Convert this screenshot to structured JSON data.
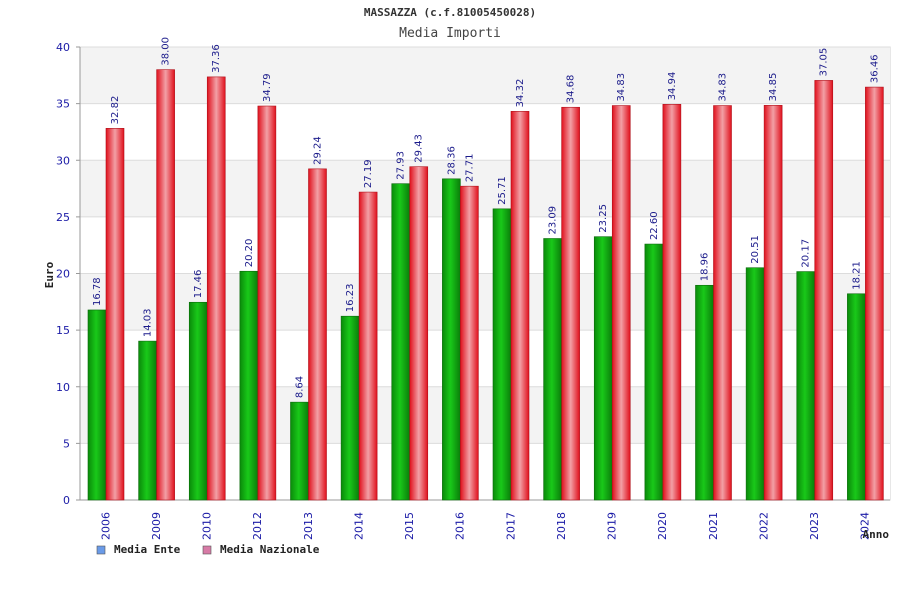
{
  "chart_data": {
    "type": "bar",
    "title": "MASSAZZA (c.f.81005450028)",
    "subtitle": "Media Importi",
    "xlabel": "Anno",
    "ylabel": "Euro",
    "ylim": [
      0,
      40
    ],
    "yticks": [
      0,
      5,
      10,
      15,
      20,
      25,
      30,
      35,
      40
    ],
    "categories": [
      "2006",
      "2009",
      "2010",
      "2012",
      "2013",
      "2014",
      "2015",
      "2016",
      "2017",
      "2018",
      "2019",
      "2020",
      "2021",
      "2022",
      "2023",
      "2024"
    ],
    "series": [
      {
        "name": "Media Ente",
        "color": "#14b414",
        "values": [
          16.78,
          14.03,
          17.46,
          20.2,
          8.64,
          16.23,
          27.93,
          28.36,
          25.71,
          23.09,
          23.25,
          22.6,
          18.96,
          20.51,
          20.17,
          18.21
        ],
        "labels": [
          "16.78",
          "14.03",
          "17.46",
          "20.20",
          "8.64",
          "16.23",
          "27.93",
          "28.36",
          "25.71",
          "23.09",
          "23.25",
          "22.60",
          "18.96",
          "20.51",
          "20.17",
          "18.21"
        ]
      },
      {
        "name": "Media Nazionale",
        "color": "#e0202a",
        "values": [
          32.82,
          38.0,
          37.36,
          34.79,
          29.24,
          27.19,
          29.43,
          27.71,
          34.32,
          34.68,
          34.83,
          34.94,
          34.83,
          34.85,
          37.05,
          36.46
        ],
        "labels": [
          "32.82",
          "38.00",
          "37.36",
          "34.79",
          "29.24",
          "27.19",
          "29.43",
          "27.71",
          "34.32",
          "34.68",
          "34.83",
          "34.94",
          "34.83",
          "34.85",
          "37.05",
          "36.46"
        ]
      }
    ],
    "legend": [
      {
        "name": "Media Ente",
        "swatch": "#6a9be8"
      },
      {
        "name": "Media Nazionale",
        "swatch": "#d77aa6"
      }
    ],
    "grid": true,
    "legend_position": "bottom-left"
  }
}
